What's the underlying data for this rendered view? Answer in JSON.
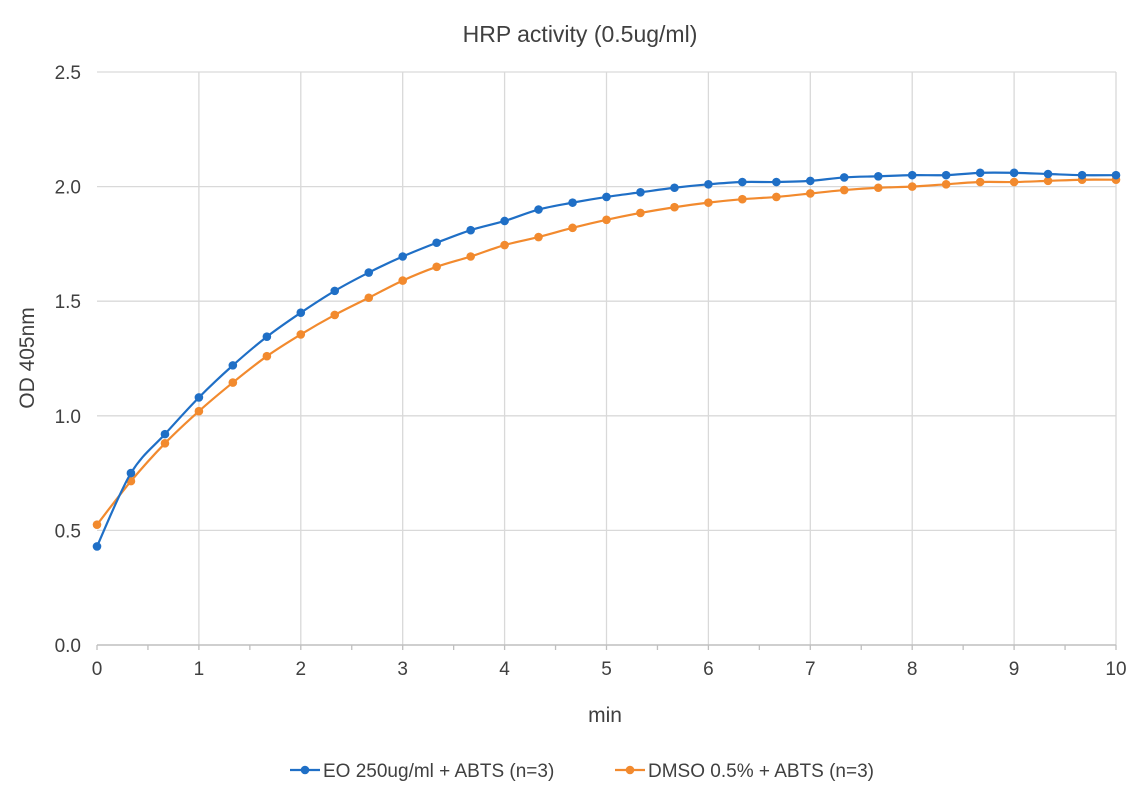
{
  "chart_data": {
    "type": "line",
    "title": "HRP activity (0.5ug/ml)",
    "xlabel": "min",
    "ylabel": "OD 405nm",
    "xlim": [
      0,
      10
    ],
    "ylim": [
      0,
      2.5
    ],
    "x_ticks": [
      0,
      1,
      2,
      3,
      4,
      5,
      6,
      7,
      8,
      9,
      10
    ],
    "x_tick_labels": [
      "0",
      "1",
      "2",
      "3",
      "4",
      "5",
      "6",
      "7",
      "8",
      "9",
      "10"
    ],
    "y_ticks": [
      0,
      0.5,
      1.0,
      1.5,
      2.0,
      2.5
    ],
    "y_tick_labels": [
      "0.0",
      "0.5",
      "1.0",
      "1.5",
      "2.0",
      "2.5"
    ],
    "grid": true,
    "legend_position": "bottom",
    "x": [
      0,
      0.333,
      0.667,
      1,
      1.333,
      1.667,
      2,
      2.333,
      2.667,
      3,
      3.333,
      3.667,
      4,
      4.333,
      4.667,
      5,
      5.333,
      5.667,
      6,
      6.333,
      6.667,
      7,
      7.333,
      7.667,
      8,
      8.333,
      8.667,
      9,
      9.333,
      9.667,
      10
    ],
    "series": [
      {
        "name": "EO 250ug/ml  + ABTS (n=3)",
        "color": "#1f6fc6",
        "values": [
          0.43,
          0.75,
          0.92,
          1.08,
          1.22,
          1.345,
          1.45,
          1.545,
          1.625,
          1.695,
          1.755,
          1.81,
          1.85,
          1.9,
          1.93,
          1.955,
          1.975,
          1.995,
          2.01,
          2.02,
          2.02,
          2.025,
          2.04,
          2.045,
          2.05,
          2.05,
          2.06,
          2.06,
          2.055,
          2.05,
          2.05
        ]
      },
      {
        "name": "DMSO 0.5%  + ABTS (n=3)",
        "color": "#f28a2e",
        "values": [
          0.525,
          0.715,
          0.88,
          1.02,
          1.145,
          1.26,
          1.355,
          1.44,
          1.515,
          1.59,
          1.65,
          1.695,
          1.745,
          1.78,
          1.82,
          1.855,
          1.885,
          1.91,
          1.93,
          1.945,
          1.955,
          1.97,
          1.985,
          1.995,
          2.0,
          2.01,
          2.02,
          2.02,
          2.025,
          2.03,
          2.03
        ]
      }
    ]
  }
}
